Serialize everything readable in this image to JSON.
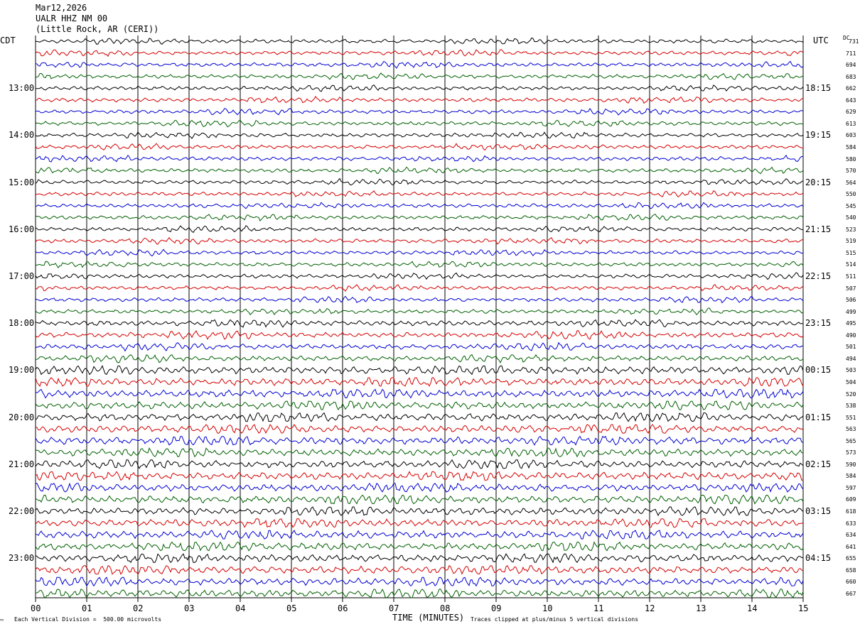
{
  "header": {
    "date": "Mar12,2026",
    "station": "UALR HHZ NM 00",
    "location": "(Little Rock, AR (CERI))"
  },
  "left_zone_label": "CDT",
  "right_zone_label": "UTC",
  "dc_label": "DC",
  "footer": {
    "scale_note": "Each Vertical Division =  500.00 microvolts",
    "clip_note": "Traces clipped at plus/minus 5 vertical divisions",
    "corner_mark": "™"
  },
  "colors": {
    "trace_cycle": [
      "#000000",
      "#d40000",
      "#0000d0",
      "#006000"
    ],
    "grid": "#000000"
  },
  "chart_data": {
    "type": "line",
    "title": "",
    "xlabel": "TIME (MINUTES)",
    "ylabel": "",
    "xlim": [
      0,
      15
    ],
    "x_ticks": [
      "00",
      "01",
      "02",
      "03",
      "04",
      "05",
      "06",
      "07",
      "08",
      "09",
      "10",
      "11",
      "12",
      "13",
      "14",
      "15"
    ],
    "rows_per_hour": 4,
    "row_count": 48,
    "left_hour_labels": [
      "13:00",
      "14:00",
      "15:00",
      "16:00",
      "17:00",
      "18:00",
      "19:00",
      "20:00",
      "21:00",
      "22:00",
      "23:00"
    ],
    "right_hour_labels": [
      "18:15",
      "19:15",
      "20:15",
      "21:15",
      "22:15",
      "23:15",
      "00:15",
      "01:15",
      "02:15",
      "03:15",
      "04:15"
    ],
    "hour_label_first_row": 4,
    "dc_offsets": [
      731,
      711,
      694,
      683,
      662,
      643,
      629,
      613,
      603,
      584,
      580,
      570,
      564,
      550,
      545,
      540,
      523,
      519,
      515,
      514,
      511,
      507,
      506,
      499,
      495,
      490,
      501,
      494,
      503,
      504,
      520,
      538,
      551,
      563,
      565,
      573,
      590,
      584,
      597,
      609,
      618,
      633,
      634,
      641,
      655,
      658,
      660,
      667
    ],
    "series": [
      {
        "name": "",
        "color": "#000000"
      },
      {
        "name": "",
        "color": "#d40000"
      },
      {
        "name": "",
        "color": "#0000d0"
      },
      {
        "name": "",
        "color": "#006000"
      }
    ],
    "grid": true
  }
}
